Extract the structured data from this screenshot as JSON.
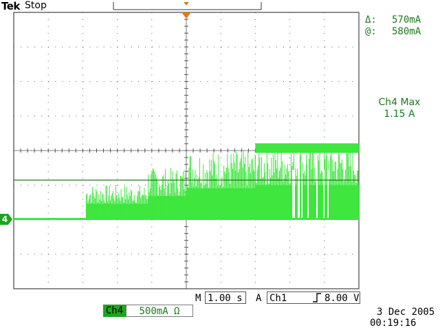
{
  "header": {
    "brand": "Tek",
    "state": "Stop"
  },
  "cursor_readout": {
    "delta_label": "Δ:",
    "delta_value": "570mA",
    "at_label": "@:",
    "at_value": "580mA"
  },
  "measurement": {
    "label": "Ch4 Max",
    "value": "1.15 A"
  },
  "channel_marker": "4",
  "bottom": {
    "timebase_prefix": "M",
    "timebase_value": "1.00 s",
    "trigger_prefix": "A",
    "trigger_source": "Ch1",
    "trigger_slope_icon": "rising-edge-icon",
    "trigger_level": "8.00 V",
    "channel_label": "Ch4",
    "channel_scale": "500mA Ω"
  },
  "datetime": {
    "date": "3 Dec 2005",
    "time": "00:19:16"
  },
  "colors": {
    "trace": "#3ee63e",
    "grid": "#555555",
    "accent": "#1a7a1a",
    "trigger": "#e07b1a"
  },
  "waveform": {
    "unit_per_div": "500mA",
    "baseline_div": 0,
    "segments": [
      {
        "t_start_div": 0.0,
        "t_end_div": 2.1,
        "top_div": 0.02
      },
      {
        "t_start_div": 2.1,
        "t_end_div": 3.9,
        "top_div": 1.0
      },
      {
        "t_start_div": 3.9,
        "t_end_div": 5.0,
        "top_div": 1.5
      },
      {
        "t_start_div": 5.0,
        "t_end_div": 7.0,
        "top_div": 2.0
      },
      {
        "t_start_div": 7.0,
        "t_end_div": 10.0,
        "top_div": 2.2
      }
    ]
  }
}
